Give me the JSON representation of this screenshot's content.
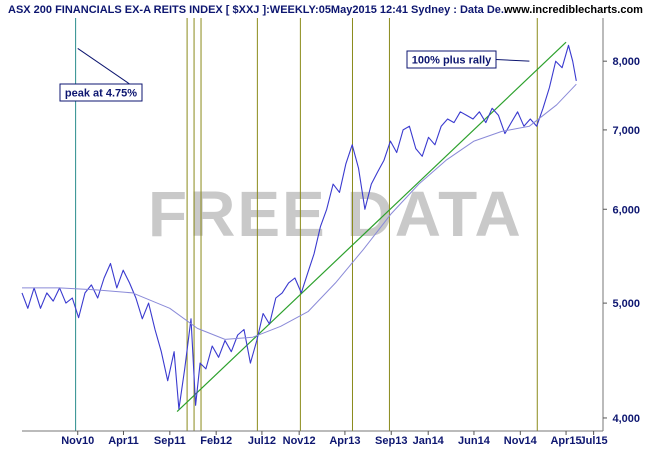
{
  "header": {
    "title": "ASX 200 FINANCIALS EX-A REITS INDEX [ $XXJ ]:WEEKLY:05May2015 12:41 Sydney : Data De..",
    "site": "www.incrediblecharts.com"
  },
  "watermark": "FREE DATA",
  "colors": {
    "price": "#3a3acf",
    "moving_average": "#8a8ad8",
    "trendline": "#2da12d",
    "event_line": "#8a8a1a",
    "peak_line": "#2a8c8c",
    "text": "#0d1670",
    "watermark": "#c9c9c9"
  },
  "chart_data": {
    "type": "line",
    "title": "ASX 200 FINANCIALS EX-A REITS INDEX [ $XXJ ]:WEEKLY:05May2015 12:41 Sydney : Data De..",
    "y_scale": "log",
    "ylim": [
      3900,
      8700
    ],
    "y_ticks": [
      4000,
      5000,
      6000,
      7000,
      8000
    ],
    "y_tick_labels": [
      "4,000",
      "5,000",
      "6,000",
      "7,000",
      "8,000"
    ],
    "x_range": [
      "2010-05-01",
      "2015-08-01"
    ],
    "x_ticks": [
      {
        "date": "2010-11-01",
        "label": "Nov10"
      },
      {
        "date": "2011-04-01",
        "label": "Apr11"
      },
      {
        "date": "2011-09-01",
        "label": "Sep11"
      },
      {
        "date": "2012-02-01",
        "label": "Feb12"
      },
      {
        "date": "2012-07-01",
        "label": "Jul12"
      },
      {
        "date": "2012-11-01",
        "label": "Nov12"
      },
      {
        "date": "2013-04-01",
        "label": "Apr13"
      },
      {
        "date": "2013-09-01",
        "label": "Sep13"
      },
      {
        "date": "2014-01-01",
        "label": "Jan14"
      },
      {
        "date": "2014-06-01",
        "label": "Jun14"
      },
      {
        "date": "2014-11-01",
        "label": "Nov14"
      },
      {
        "date": "2015-04-01",
        "label": "Apr15"
      },
      {
        "date": "2015-07-01",
        "label": "Jul15"
      }
    ],
    "grid": false,
    "series": [
      {
        "role": "price",
        "points": [
          [
            "2010-05-01",
            5100
          ],
          [
            "2010-05-20",
            4950
          ],
          [
            "2010-06-10",
            5150
          ],
          [
            "2010-07-01",
            4950
          ],
          [
            "2010-07-22",
            5100
          ],
          [
            "2010-08-12",
            5020
          ],
          [
            "2010-09-02",
            5150
          ],
          [
            "2010-09-23",
            5000
          ],
          [
            "2010-10-14",
            5050
          ],
          [
            "2010-11-04",
            4860
          ],
          [
            "2010-11-25",
            5100
          ],
          [
            "2010-12-16",
            5180
          ],
          [
            "2011-01-06",
            5050
          ],
          [
            "2011-01-27",
            5250
          ],
          [
            "2011-02-17",
            5400
          ],
          [
            "2011-03-10",
            5150
          ],
          [
            "2011-03-31",
            5330
          ],
          [
            "2011-04-21",
            5200
          ],
          [
            "2011-05-12",
            5050
          ],
          [
            "2011-06-02",
            4850
          ],
          [
            "2011-06-23",
            5000
          ],
          [
            "2011-07-14",
            4750
          ],
          [
            "2011-08-04",
            4550
          ],
          [
            "2011-08-25",
            4300
          ],
          [
            "2011-09-15",
            4550
          ],
          [
            "2011-10-01",
            4070
          ],
          [
            "2011-10-20",
            4400
          ],
          [
            "2011-11-10",
            4850
          ],
          [
            "2011-11-25",
            4100
          ],
          [
            "2011-12-10",
            4450
          ],
          [
            "2011-12-29",
            4400
          ],
          [
            "2012-01-19",
            4600
          ],
          [
            "2012-02-09",
            4500
          ],
          [
            "2012-03-01",
            4650
          ],
          [
            "2012-03-22",
            4550
          ],
          [
            "2012-04-12",
            4700
          ],
          [
            "2012-05-03",
            4750
          ],
          [
            "2012-05-24",
            4450
          ],
          [
            "2012-06-14",
            4650
          ],
          [
            "2012-07-05",
            4900
          ],
          [
            "2012-07-26",
            4800
          ],
          [
            "2012-08-16",
            5050
          ],
          [
            "2012-09-06",
            5100
          ],
          [
            "2012-09-27",
            5200
          ],
          [
            "2012-10-18",
            5250
          ],
          [
            "2012-11-08",
            5100
          ],
          [
            "2012-11-29",
            5300
          ],
          [
            "2012-12-20",
            5500
          ],
          [
            "2013-01-10",
            5800
          ],
          [
            "2013-01-31",
            6000
          ],
          [
            "2013-02-21",
            6300
          ],
          [
            "2013-03-14",
            6200
          ],
          [
            "2013-04-04",
            6550
          ],
          [
            "2013-04-25",
            6800
          ],
          [
            "2013-05-16",
            6500
          ],
          [
            "2013-06-06",
            6000
          ],
          [
            "2013-06-27",
            6300
          ],
          [
            "2013-07-18",
            6450
          ],
          [
            "2013-08-08",
            6600
          ],
          [
            "2013-08-29",
            6850
          ],
          [
            "2013-09-19",
            6700
          ],
          [
            "2013-10-10",
            7000
          ],
          [
            "2013-10-31",
            7050
          ],
          [
            "2013-11-21",
            6750
          ],
          [
            "2013-12-12",
            6650
          ],
          [
            "2014-01-02",
            6900
          ],
          [
            "2014-01-23",
            6800
          ],
          [
            "2014-02-13",
            7050
          ],
          [
            "2014-03-06",
            7150
          ],
          [
            "2014-03-27",
            7100
          ],
          [
            "2014-04-17",
            7250
          ],
          [
            "2014-05-08",
            7200
          ],
          [
            "2014-05-29",
            7150
          ],
          [
            "2014-06-19",
            7250
          ],
          [
            "2014-07-10",
            7100
          ],
          [
            "2014-07-31",
            7300
          ],
          [
            "2014-08-21",
            7200
          ],
          [
            "2014-09-11",
            6950
          ],
          [
            "2014-10-02",
            7100
          ],
          [
            "2014-10-23",
            7250
          ],
          [
            "2014-11-13",
            7050
          ],
          [
            "2014-12-04",
            7150
          ],
          [
            "2014-12-25",
            7050
          ],
          [
            "2015-01-15",
            7300
          ],
          [
            "2015-02-05",
            7600
          ],
          [
            "2015-02-26",
            8000
          ],
          [
            "2015-03-19",
            7900
          ],
          [
            "2015-04-09",
            8250
          ],
          [
            "2015-04-23",
            8000
          ],
          [
            "2015-05-05",
            7700
          ]
        ]
      },
      {
        "role": "moving_average",
        "points": [
          [
            "2010-05-01",
            5150
          ],
          [
            "2010-09-01",
            5150
          ],
          [
            "2011-01-01",
            5130
          ],
          [
            "2011-05-01",
            5100
          ],
          [
            "2011-09-01",
            4950
          ],
          [
            "2011-12-01",
            4760
          ],
          [
            "2012-03-01",
            4660
          ],
          [
            "2012-06-01",
            4680
          ],
          [
            "2012-09-01",
            4780
          ],
          [
            "2012-12-01",
            4920
          ],
          [
            "2013-03-01",
            5200
          ],
          [
            "2013-06-01",
            5550
          ],
          [
            "2013-09-01",
            5950
          ],
          [
            "2013-12-01",
            6300
          ],
          [
            "2014-03-01",
            6600
          ],
          [
            "2014-06-01",
            6850
          ],
          [
            "2014-09-01",
            6980
          ],
          [
            "2014-12-01",
            7050
          ],
          [
            "2015-03-01",
            7350
          ],
          [
            "2015-05-05",
            7650
          ]
        ]
      }
    ],
    "trendline": [
      [
        "2011-09-25",
        4050
      ],
      [
        "2015-04-01",
        8300
      ]
    ],
    "event_lines": [
      {
        "date": "2010-10-25",
        "kind": "peak"
      },
      {
        "date": "2011-10-28",
        "kind": "event"
      },
      {
        "date": "2011-11-20",
        "kind": "event"
      },
      {
        "date": "2011-12-13",
        "kind": "event"
      },
      {
        "date": "2012-06-16",
        "kind": "event"
      },
      {
        "date": "2012-11-05",
        "kind": "event"
      },
      {
        "date": "2013-04-26",
        "kind": "event"
      },
      {
        "date": "2013-08-26",
        "kind": "event"
      },
      {
        "date": "2014-12-27",
        "kind": "event"
      }
    ],
    "annotations": [
      {
        "id": "peak",
        "text": "peak at 4.75%",
        "target_date": "2010-11-01",
        "target_value": 8200
      },
      {
        "id": "rally",
        "text": "100% plus rally",
        "target_date": "2014-12-01",
        "target_value": 8000
      }
    ]
  }
}
